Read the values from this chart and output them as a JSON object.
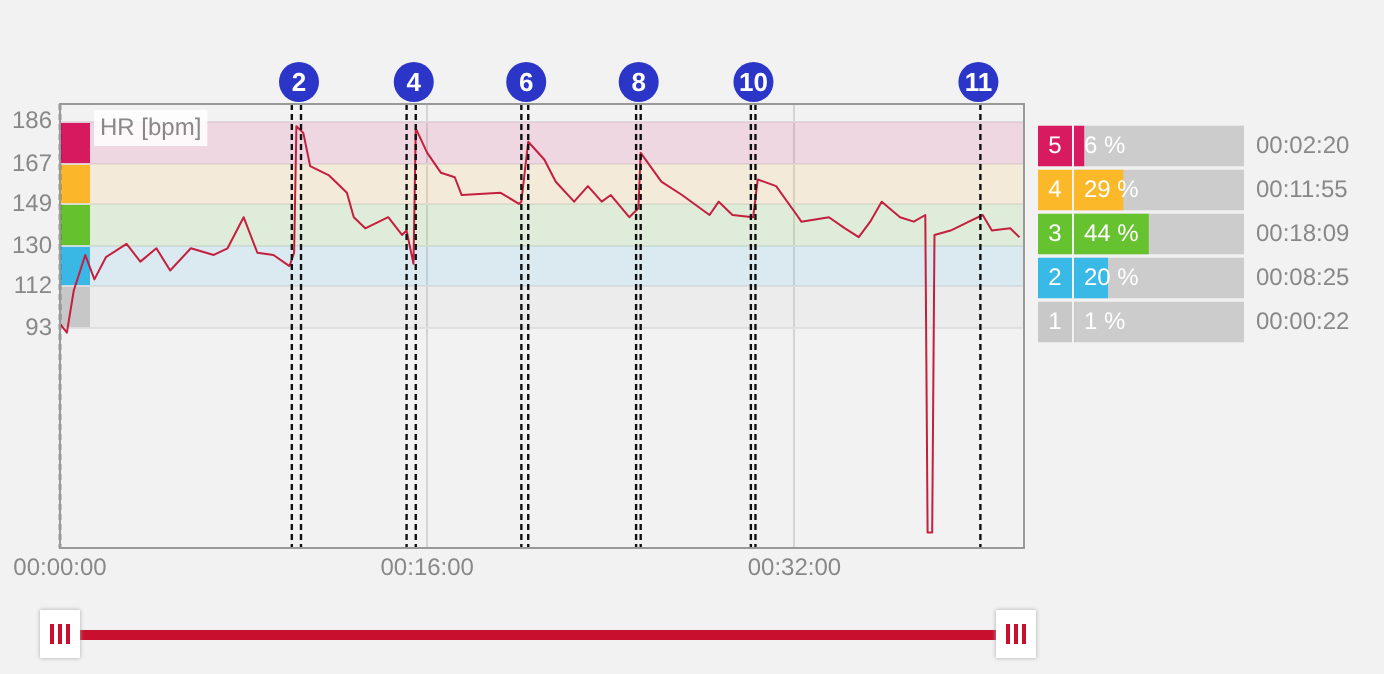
{
  "chart_data": [
    {
      "type": "line",
      "ylabel": "HR [bpm]",
      "x": [
        0,
        0.3,
        0.6,
        1.1,
        1.5,
        2.0,
        2.9,
        3.5,
        4.2,
        4.8,
        5.7,
        6.7,
        7.3,
        8.0,
        8.6,
        9.3,
        10.0,
        10.2,
        10.3,
        10.6,
        10.9,
        11.7,
        12.5,
        12.8,
        13.3,
        14.3,
        14.9,
        15.1,
        15.4,
        15.5,
        16.0,
        16.6,
        17.2,
        17.5,
        19.2,
        20.0,
        20.1,
        20.4,
        21.1,
        21.6,
        22.4,
        23.0,
        23.6,
        24.0,
        24.8,
        25.2,
        25.3,
        26.2,
        27.1,
        28.3,
        28.7,
        29.3,
        30.2,
        30.4,
        31.2,
        32.1,
        32.3,
        33.5,
        34.2,
        34.8,
        35.3,
        35.8,
        36.6,
        37.2,
        37.7,
        37.8,
        38.0,
        38.1,
        38.8,
        39.6,
        40.2,
        40.6,
        41.4,
        41.8
      ],
      "series": [
        {
          "color": "#c41f3e",
          "values": [
            95,
            91,
            110,
            126,
            115,
            125,
            131,
            123,
            129,
            119,
            129,
            126,
            129,
            143,
            127,
            126,
            121,
            127,
            184,
            181,
            166,
            162,
            154,
            143,
            138,
            143,
            135,
            137,
            122,
            183,
            172,
            163,
            161,
            153,
            154,
            149,
            150,
            177,
            169,
            159,
            150,
            157,
            150,
            153,
            143,
            147,
            172,
            159,
            153,
            144,
            150,
            144,
            143,
            160,
            157,
            144,
            141,
            143,
            138,
            134,
            141,
            150,
            143,
            141,
            144,
            1,
            1,
            135,
            137,
            141,
            144,
            137,
            138,
            134
          ]
        }
      ],
      "xlim": [
        0,
        42
      ],
      "xticks": [
        {
          "value": 0,
          "label": "00:00:00"
        },
        {
          "value": 16,
          "label": "00:16:00"
        },
        {
          "value": 32,
          "label": "00:32:00"
        }
      ],
      "ylim": [
        -6,
        194
      ],
      "yticks": [
        93,
        112,
        130,
        149,
        167,
        186
      ],
      "bands": [
        {
          "axis": "y",
          "from": 167,
          "to": 186,
          "label": null,
          "color": "#d81b60"
        },
        {
          "axis": "y",
          "from": 149,
          "to": 167,
          "label": null,
          "color": "#fbb829"
        },
        {
          "axis": "y",
          "from": 130,
          "to": 149,
          "label": null,
          "color": "#66c22e"
        },
        {
          "axis": "y",
          "from": 112,
          "to": 130,
          "label": null,
          "color": "#39b9e6"
        },
        {
          "axis": "y",
          "from": 93,
          "to": 112,
          "label": null,
          "color": "#c8c8c8"
        }
      ],
      "ref_lines": [
        {
          "axis": "x",
          "value": 0,
          "label": null,
          "line_style": "dashed"
        },
        {
          "axis": "x",
          "value": 10.1,
          "label": null,
          "line_style": "dashed"
        },
        {
          "axis": "x",
          "value": 10.5,
          "label": null,
          "line_style": "dashed"
        },
        {
          "axis": "x",
          "value": 15.1,
          "label": null,
          "line_style": "dashed"
        },
        {
          "axis": "x",
          "value": 15.5,
          "label": null,
          "line_style": "dashed"
        },
        {
          "axis": "x",
          "value": 20.1,
          "label": null,
          "line_style": "dashed"
        },
        {
          "axis": "x",
          "value": 20.4,
          "label": null,
          "line_style": "dashed"
        },
        {
          "axis": "x",
          "value": 25.1,
          "label": null,
          "line_style": "dashed"
        },
        {
          "axis": "x",
          "value": 25.3,
          "label": null,
          "line_style": "dashed"
        },
        {
          "axis": "x",
          "value": 30.1,
          "label": null,
          "line_style": "dashed"
        },
        {
          "axis": "x",
          "value": 30.3,
          "label": null,
          "line_style": "dashed"
        },
        {
          "axis": "x",
          "value": 40.1,
          "label": null,
          "line_style": "dashed"
        }
      ],
      "annotations": [
        {
          "text": "2",
          "x": 10.5
        },
        {
          "text": "4",
          "x": 15.5
        },
        {
          "text": "6",
          "x": 20.4
        },
        {
          "text": "8",
          "x": 25.3
        },
        {
          "text": "10",
          "x": 30.3
        },
        {
          "text": "11",
          "x": 40.1
        }
      ],
      "grid": true,
      "legend": false,
      "marker": "none",
      "line_style": "solid"
    },
    {
      "type": "bar",
      "orientation": "horizontal",
      "categories": [
        "5",
        "4",
        "3",
        "2",
        "1"
      ],
      "values": [
        6,
        29,
        44,
        20,
        1
      ],
      "colors": [
        "#d81b60",
        "#fbb829",
        "#66c22e",
        "#39b9e6",
        "#c8c8c8"
      ],
      "value_labels": [
        "6 %",
        "29 %",
        "44 %",
        "20 %",
        "1 %"
      ],
      "annotations": [
        "00:02:20",
        "00:11:55",
        "00:18:09",
        "00:08:25",
        "00:00:22"
      ],
      "xlim": [
        0,
        100
      ],
      "tick_labels": "y",
      "legend": false
    }
  ]
}
